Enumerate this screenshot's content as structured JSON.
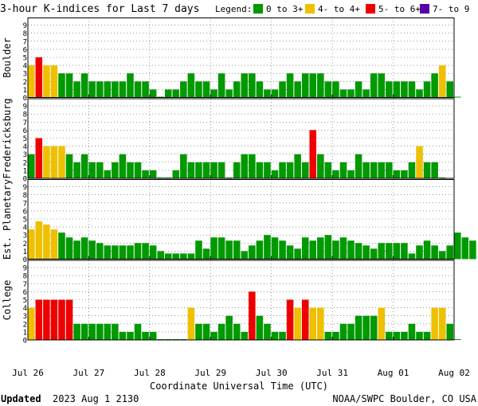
{
  "chart_data": {
    "type": "bar",
    "title": "3-hour K-indices for Last 7 days",
    "legend_label": "Legend:",
    "legend": [
      {
        "label": "0 to 3+",
        "color": "#009900"
      },
      {
        "label": "4- to 4+",
        "color": "#eec000"
      },
      {
        "label": "5- to 6+",
        "color": "#ee0000"
      },
      {
        "label": "7- to 9",
        "color": "#5500aa"
      }
    ],
    "xlabel": "Coordinate Universal Time (UTC)",
    "x_ticks": [
      "Jul 26",
      "Jul 27",
      "Jul 28",
      "Jul 29",
      "Jul 30",
      "Jul 31",
      "Aug 01",
      "Aug 02"
    ],
    "y_ticks": [
      "0",
      "1",
      "2",
      "3",
      "4",
      "5",
      "6",
      "7",
      "8",
      "9"
    ],
    "ylim": [
      0,
      9
    ],
    "intervals_per_day": 8,
    "days": 7,
    "grid": true,
    "panels": [
      {
        "name": "Boulder",
        "values": [
          4,
          5,
          4,
          4,
          3,
          3,
          2,
          3,
          2,
          2,
          2,
          2,
          2,
          3,
          2,
          2,
          1,
          0,
          1,
          1,
          2,
          3,
          2,
          2,
          1,
          3,
          1,
          2,
          3,
          3,
          2,
          1,
          1,
          2,
          3,
          2,
          3,
          3,
          3,
          2,
          2,
          1,
          1,
          2,
          1,
          3,
          3,
          2,
          2,
          2,
          2,
          1,
          2,
          3,
          4,
          2,
          0
        ]
      },
      {
        "name": "Fredericksburg",
        "values": [
          3,
          5,
          4,
          4,
          4,
          3,
          2,
          3,
          2,
          2,
          1,
          2,
          3,
          2,
          2,
          1,
          1,
          0,
          0,
          1,
          3,
          2,
          2,
          2,
          2,
          2,
          0,
          2,
          3,
          3,
          2,
          2,
          1,
          2,
          2,
          3,
          2,
          6,
          3,
          2,
          1,
          2,
          1,
          3,
          2,
          2,
          2,
          2,
          1,
          1,
          2,
          4,
          2,
          2,
          0
        ]
      },
      {
        "name": "Est. Planetary",
        "values": [
          3.7,
          4.7,
          4.3,
          3.7,
          3.3,
          2.7,
          2.3,
          2.7,
          2.3,
          2,
          1.7,
          1.7,
          1.7,
          1.7,
          2,
          2,
          1.7,
          1,
          0.7,
          0.7,
          0.7,
          0.7,
          2.3,
          1.3,
          2.7,
          2.7,
          2.3,
          2.3,
          1,
          1.7,
          2.3,
          3,
          2.7,
          2.3,
          1.7,
          1.3,
          2.7,
          2.3,
          2.7,
          3,
          2.3,
          2.7,
          2.3,
          2,
          1.7,
          1.3,
          2,
          2,
          2,
          2,
          0.7,
          1.7,
          2.3,
          1.7,
          1,
          1.7,
          3.3,
          2.7,
          2.3
        ]
      },
      {
        "name": "College",
        "values": [
          4,
          5,
          5,
          5,
          5,
          5,
          2,
          2,
          2,
          2,
          2,
          2,
          1,
          1,
          2,
          1,
          1,
          0,
          0,
          0,
          0,
          4,
          2,
          2,
          1,
          2,
          3,
          2,
          1,
          6,
          3,
          2,
          1,
          1,
          5,
          4,
          5,
          4,
          4,
          1,
          1,
          2,
          2,
          3,
          3,
          3,
          4,
          1,
          1,
          1,
          2,
          1,
          1,
          4,
          4,
          2,
          0
        ]
      }
    ]
  },
  "footer": {
    "updated_label": "Updated",
    "updated_value": "2023 Aug  1 2130",
    "source": "NOAA/SWPC Boulder, CO USA"
  }
}
